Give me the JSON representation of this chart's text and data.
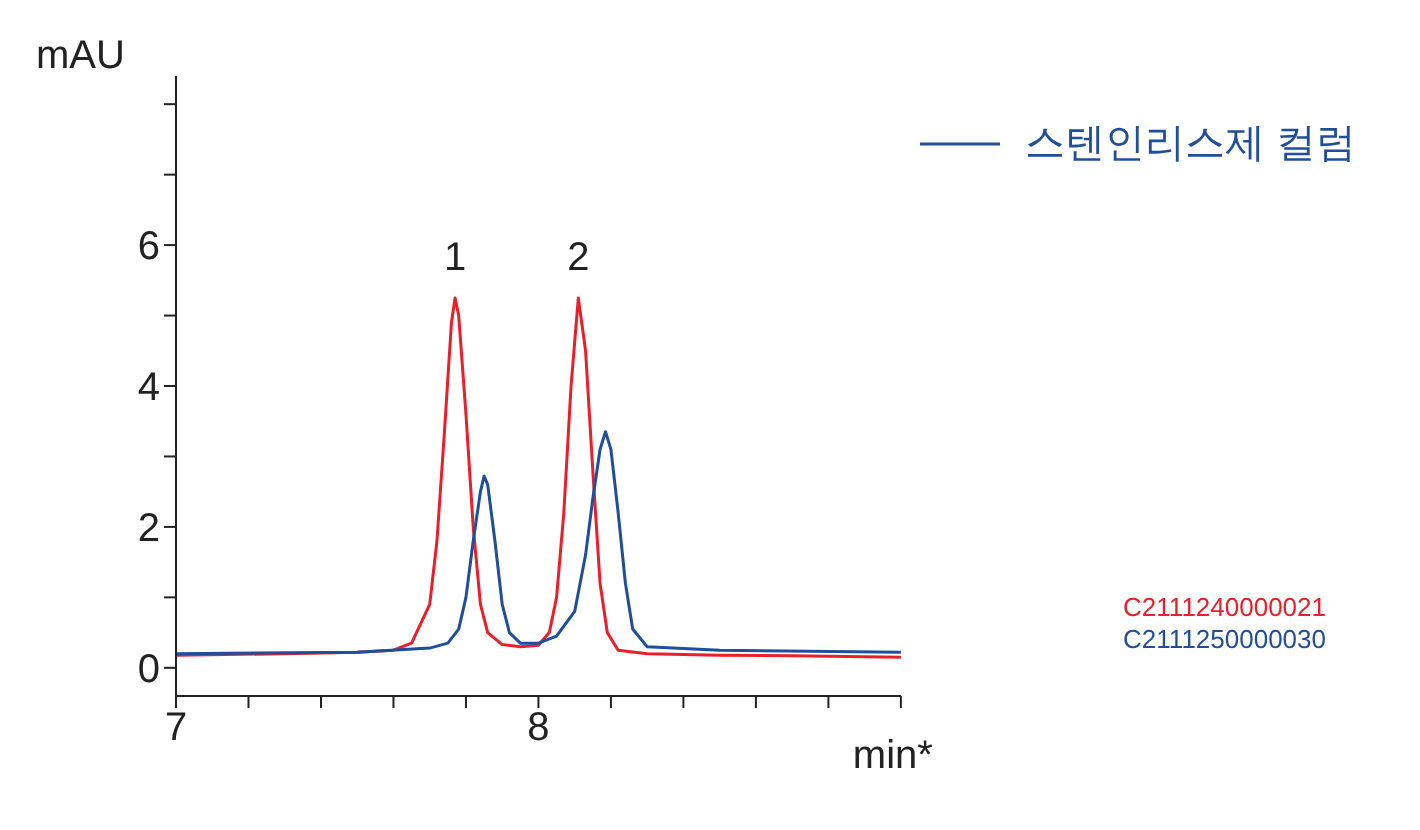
{
  "chart_data": {
    "type": "line",
    "xlabel": "min*",
    "ylabel": "mAU",
    "xlim": [
      7,
      9
    ],
    "xticks": [
      7,
      {
        "value": 7.2,
        "label": null
      },
      {
        "value": 7.4,
        "label": null
      },
      {
        "value": 7.6,
        "label": null
      },
      {
        "value": 7.8,
        "label": null
      },
      8,
      {
        "value": 8.2,
        "label": null
      },
      {
        "value": 8.4,
        "label": null
      },
      {
        "value": 8.6,
        "label": null
      },
      {
        "value": 8.8,
        "label": null
      },
      {
        "value": 9,
        "label": null
      }
    ],
    "ylim": [
      -0.4,
      8.4
    ],
    "yticks": [
      0,
      {
        "value": 1,
        "label": null
      },
      2,
      {
        "value": 3,
        "label": null
      },
      4,
      {
        "value": 5,
        "label": null
      },
      6,
      {
        "value": 7,
        "label": null
      },
      {
        "value": 8,
        "label": null
      }
    ],
    "grid": false,
    "legend": "top right",
    "marker": "none",
    "line_style": "solid",
    "series": [
      {
        "color": "#e8202a",
        "x": [
          7.0,
          7.3,
          7.5,
          7.6,
          7.65,
          7.7,
          7.72,
          7.74,
          7.76,
          7.77,
          7.78,
          7.8,
          7.82,
          7.84,
          7.86,
          7.9,
          7.95,
          8.0,
          8.03,
          8.05,
          8.07,
          8.09,
          8.11,
          8.13,
          8.15,
          8.17,
          8.19,
          8.22,
          8.3,
          8.5,
          8.7,
          9.0
        ],
        "values": [
          0.18,
          0.2,
          0.22,
          0.25,
          0.35,
          0.9,
          1.8,
          3.3,
          4.9,
          5.25,
          5.0,
          3.6,
          2.0,
          0.9,
          0.5,
          0.33,
          0.3,
          0.32,
          0.5,
          1.0,
          2.2,
          4.0,
          5.25,
          4.5,
          2.8,
          1.2,
          0.5,
          0.25,
          0.2,
          0.18,
          0.17,
          0.15
        ]
      },
      {
        "name": "스텐인리스제 컬럼",
        "color": "#1f4e9c",
        "x": [
          7.0,
          7.5,
          7.7,
          7.75,
          7.78,
          7.8,
          7.82,
          7.84,
          7.85,
          7.86,
          7.88,
          7.9,
          7.92,
          7.95,
          8.0,
          8.05,
          8.1,
          8.13,
          8.15,
          8.17,
          8.185,
          8.2,
          8.22,
          8.24,
          8.26,
          8.3,
          8.5,
          9.0
        ],
        "values": [
          0.2,
          0.22,
          0.28,
          0.35,
          0.55,
          1.0,
          1.8,
          2.5,
          2.72,
          2.6,
          1.8,
          0.9,
          0.5,
          0.35,
          0.35,
          0.45,
          0.8,
          1.6,
          2.4,
          3.1,
          3.35,
          3.1,
          2.2,
          1.2,
          0.55,
          0.3,
          0.25,
          0.22
        ]
      }
    ],
    "annotations": [
      {
        "text": "1",
        "x": 7.77,
        "y": 5.25
      },
      {
        "text": "2",
        "x": 8.11,
        "y": 5.25
      },
      "C2111240000021",
      "C2111250000030"
    ]
  }
}
